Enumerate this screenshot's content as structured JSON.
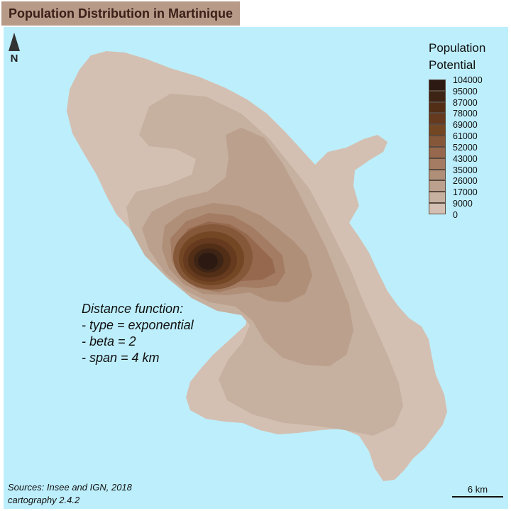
{
  "map": {
    "title": "Population Distribution in Martinique",
    "north_label": "N",
    "legend": {
      "title_line1": "Population",
      "title_line2": "Potential",
      "breaks": [
        "104000",
        "95000",
        "87000",
        "78000",
        "69000",
        "61000",
        "52000",
        "43000",
        "35000",
        "26000",
        "17000",
        "9000",
        "0"
      ],
      "colors": [
        "#2c1a12",
        "#3d2414",
        "#522e17",
        "#653a1e",
        "#734724",
        "#85583a",
        "#96694e",
        "#a37c63",
        "#b08f79",
        "#bba08d",
        "#c6b09f",
        "#d4c0b2"
      ]
    },
    "note": {
      "heading": "Distance function:",
      "lines": [
        "- type = exponential",
        "- beta = 2",
        "- span = 4 km"
      ]
    },
    "sources_line1": "Sources: Insee and IGN, 2018",
    "sources_line2": "cartography 2.4.2",
    "scale_label": "6 km",
    "colors": {
      "sea": "#bdeefb",
      "title_bg": "#b89a88",
      "title_text": "#3a2018"
    }
  }
}
